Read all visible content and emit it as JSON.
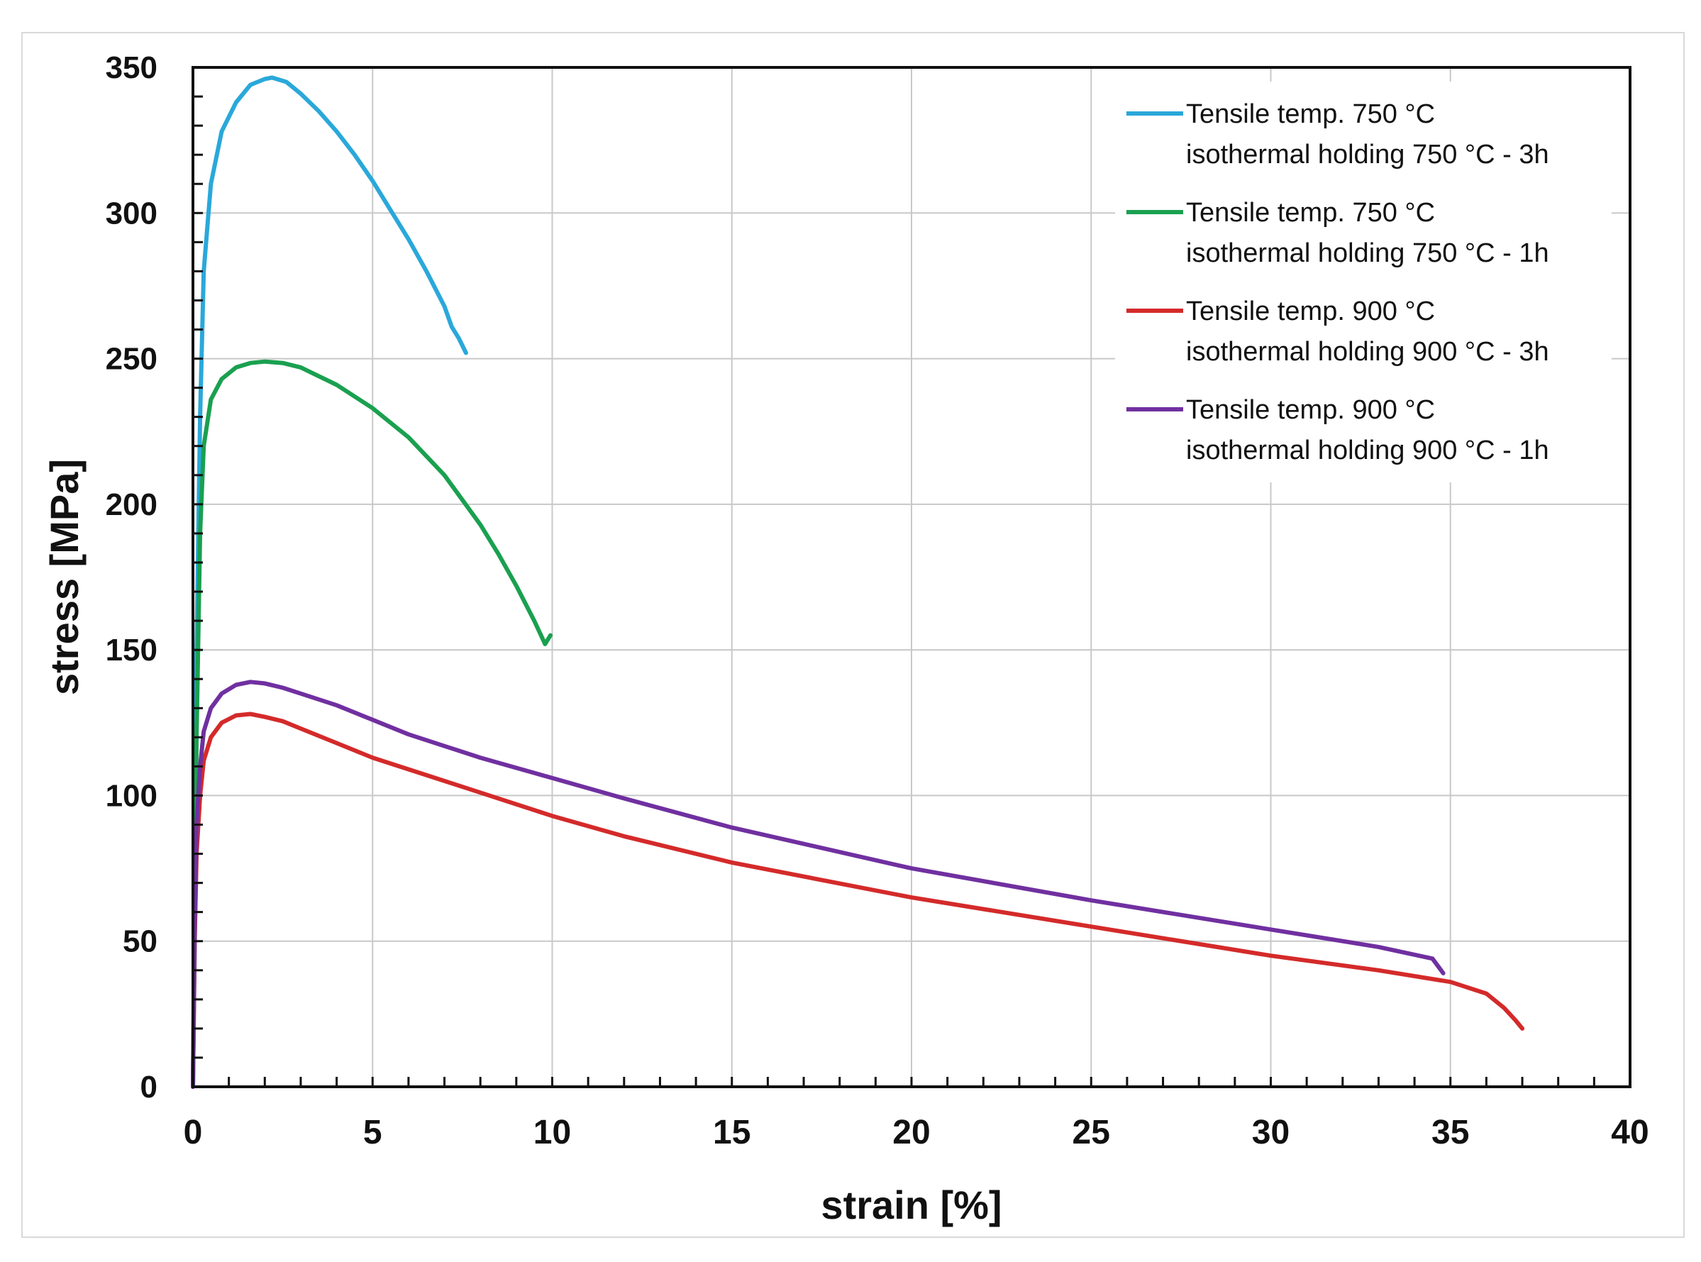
{
  "chart_data": {
    "type": "line",
    "title": "",
    "xlabel": "strain [%]",
    "ylabel": "stress [MPa]",
    "xlim": [
      0,
      40
    ],
    "ylim": [
      0,
      350
    ],
    "x_ticks": [
      0,
      5,
      10,
      15,
      20,
      25,
      30,
      35,
      40
    ],
    "y_ticks": [
      0,
      50,
      100,
      150,
      200,
      250,
      300,
      350
    ],
    "grid": true,
    "legend_position": "top-right",
    "series": [
      {
        "name_line1": "Tensile temp. 750 °C",
        "name_line2": "isothermal holding 750 °C - 3h",
        "color": "#2aa8da",
        "x": [
          0,
          0.1,
          0.2,
          0.3,
          0.5,
          0.8,
          1.2,
          1.6,
          2.0,
          2.2,
          2.6,
          3.0,
          3.5,
          4.0,
          4.5,
          5.0,
          5.5,
          6.0,
          6.5,
          7.0,
          7.2,
          7.4,
          7.6
        ],
        "y": [
          0,
          150,
          230,
          280,
          310,
          328,
          338,
          344,
          346,
          346.5,
          345,
          341,
          335,
          328,
          320,
          311,
          301,
          291,
          280,
          268,
          261,
          257,
          252
        ]
      },
      {
        "name_line1": "Tensile temp. 750 °C",
        "name_line2": "isothermal holding 750 °C - 1h",
        "color": "#1aa050",
        "x": [
          0,
          0.1,
          0.2,
          0.3,
          0.5,
          0.8,
          1.2,
          1.6,
          2.0,
          2.5,
          3.0,
          4.0,
          5.0,
          6.0,
          7.0,
          8.0,
          8.5,
          9.0,
          9.5,
          9.8,
          9.95
        ],
        "y": [
          0,
          120,
          190,
          220,
          236,
          243,
          247,
          248.5,
          249,
          248.5,
          247,
          241,
          233,
          223,
          210,
          193,
          183,
          172,
          160,
          152,
          155
        ]
      },
      {
        "name_line1": "Tensile temp. 900 °C",
        "name_line2": "isothermal holding 900 °C - 3h",
        "color": "#d42a2a",
        "x": [
          0,
          0.05,
          0.1,
          0.2,
          0.3,
          0.5,
          0.8,
          1.2,
          1.6,
          2.0,
          2.5,
          3.0,
          4.0,
          5.0,
          6.0,
          7.0,
          8.0,
          10.0,
          12.0,
          15.0,
          20.0,
          25.0,
          30.0,
          33.0,
          35.0,
          36.0,
          36.5,
          36.8,
          37.0
        ],
        "y": [
          0,
          50,
          80,
          100,
          112,
          120,
          125,
          127.5,
          128,
          127,
          125.5,
          123,
          118,
          113,
          109,
          105,
          101,
          93,
          86,
          77,
          65,
          55,
          45,
          40,
          36,
          32,
          27,
          23,
          20
        ]
      },
      {
        "name_line1": "Tensile temp. 900 °C",
        "name_line2": "isothermal holding 900 °C - 1h",
        "color": "#7030a0",
        "x": [
          0,
          0.05,
          0.1,
          0.2,
          0.3,
          0.5,
          0.8,
          1.2,
          1.6,
          2.0,
          2.5,
          3.0,
          4.0,
          5.0,
          6.0,
          8.0,
          10.0,
          12.0,
          15.0,
          20.0,
          25.0,
          30.0,
          33.0,
          34.5,
          34.8
        ],
        "y": [
          0,
          55,
          90,
          110,
          122,
          130,
          135,
          138,
          139,
          138.5,
          137,
          135,
          131,
          126,
          121,
          113,
          106,
          99,
          89,
          75,
          64,
          54,
          48,
          44,
          39
        ]
      }
    ]
  }
}
